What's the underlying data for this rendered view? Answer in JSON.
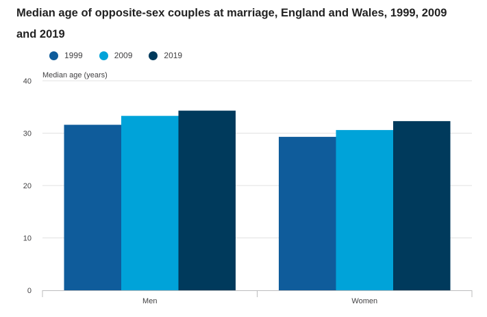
{
  "title": "Median age of opposite-sex couples at marriage, England and Wales, 1999, 2009 and 2019",
  "colors": {
    "1999": "#0f5c9b",
    "2009": "#00a3d9",
    "2019": "#003a5c",
    "grid": "#e1e1e1",
    "axis": "#bcbcbd"
  },
  "chart_data": {
    "type": "bar",
    "title": "Median age of opposite-sex couples at marriage, England and Wales, 1999, 2009 and 2019",
    "xlabel": "",
    "ylabel": "Median age (years)",
    "ylim": [
      0,
      40
    ],
    "yticks": [
      0,
      10,
      20,
      30,
      40
    ],
    "categories": [
      "Men",
      "Women"
    ],
    "series": [
      {
        "name": "1999",
        "color": "#0f5c9b",
        "values": [
          31.6,
          29.3
        ]
      },
      {
        "name": "2009",
        "color": "#00a3d9",
        "values": [
          33.3,
          30.6
        ]
      },
      {
        "name": "2019",
        "color": "#003a5c",
        "values": [
          34.3,
          32.3
        ]
      }
    ],
    "grid": true,
    "legend": "top-left"
  }
}
